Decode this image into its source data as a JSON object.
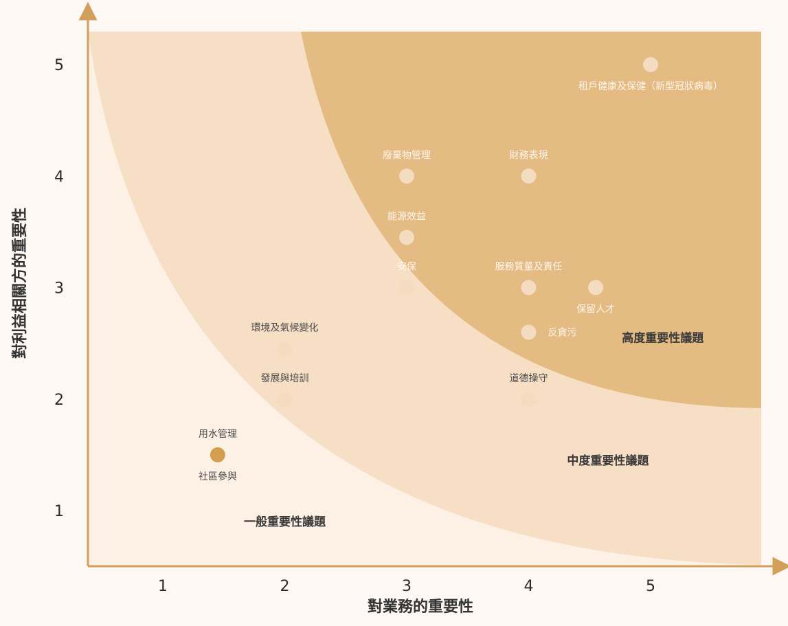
{
  "colors": {
    "background": "#fdf8f3",
    "zone_low": "#fdf1e6",
    "zone_medium": "#f7dfc6",
    "zone_high": "#e3bb83",
    "axis": "#d2a05a",
    "point": "#f3dcc0",
    "point_highlight": "#d59e4f",
    "label_on_dark": "#fff6ec",
    "label_on_light": "#4a4a4a"
  },
  "chart_data": {
    "type": "scatter",
    "xlabel": "對業務的重要性",
    "ylabel": "對利益相關方的重要性",
    "xlim": [
      0.5,
      5.9
    ],
    "ylim": [
      0.5,
      5.3
    ],
    "xticks": [
      1,
      2,
      3,
      4,
      5
    ],
    "yticks": [
      1,
      2,
      3,
      4,
      5
    ],
    "zones": [
      {
        "name": "一般重要性議題",
        "label_at": [
          2.0,
          0.9
        ]
      },
      {
        "name": "中度重要性議題",
        "label_at": [
          4.65,
          1.45
        ]
      },
      {
        "name": "高度重要性議題",
        "label_at": [
          5.1,
          2.55
        ]
      }
    ],
    "points": [
      {
        "label": "租戶健康及保健（新型冠狀病毒）",
        "x": 5.0,
        "y": 5.0,
        "label_pos": "below"
      },
      {
        "label": "廢棄物管理",
        "x": 3.0,
        "y": 4.0,
        "label_pos": "above"
      },
      {
        "label": "財務表現",
        "x": 4.0,
        "y": 4.0,
        "label_pos": "above"
      },
      {
        "label": "能源效益",
        "x": 3.0,
        "y": 3.45,
        "label_pos": "above"
      },
      {
        "label": "安保",
        "x": 3.0,
        "y": 3.0,
        "label_pos": "above"
      },
      {
        "label": "服務質量及責任",
        "x": 4.0,
        "y": 3.0,
        "label_pos": "above"
      },
      {
        "label": "保留人才",
        "x": 4.55,
        "y": 3.0,
        "label_pos": "below"
      },
      {
        "label": "反貪污",
        "x": 4.0,
        "y": 2.6,
        "label_pos": "right"
      },
      {
        "label": "環境及氣候變化",
        "x": 2.0,
        "y": 2.45,
        "label_pos": "above"
      },
      {
        "label": "發展與培訓",
        "x": 2.0,
        "y": 2.0,
        "label_pos": "above"
      },
      {
        "label": "道德操守",
        "x": 4.0,
        "y": 2.0,
        "label_pos": "above"
      },
      {
        "label": "用水管理",
        "x": 1.45,
        "y": 1.5,
        "label_pos": "above",
        "highlight": true
      },
      {
        "label": "社區參與",
        "x": 1.45,
        "y": 1.5,
        "label_pos": "below",
        "label_only": true
      }
    ]
  }
}
